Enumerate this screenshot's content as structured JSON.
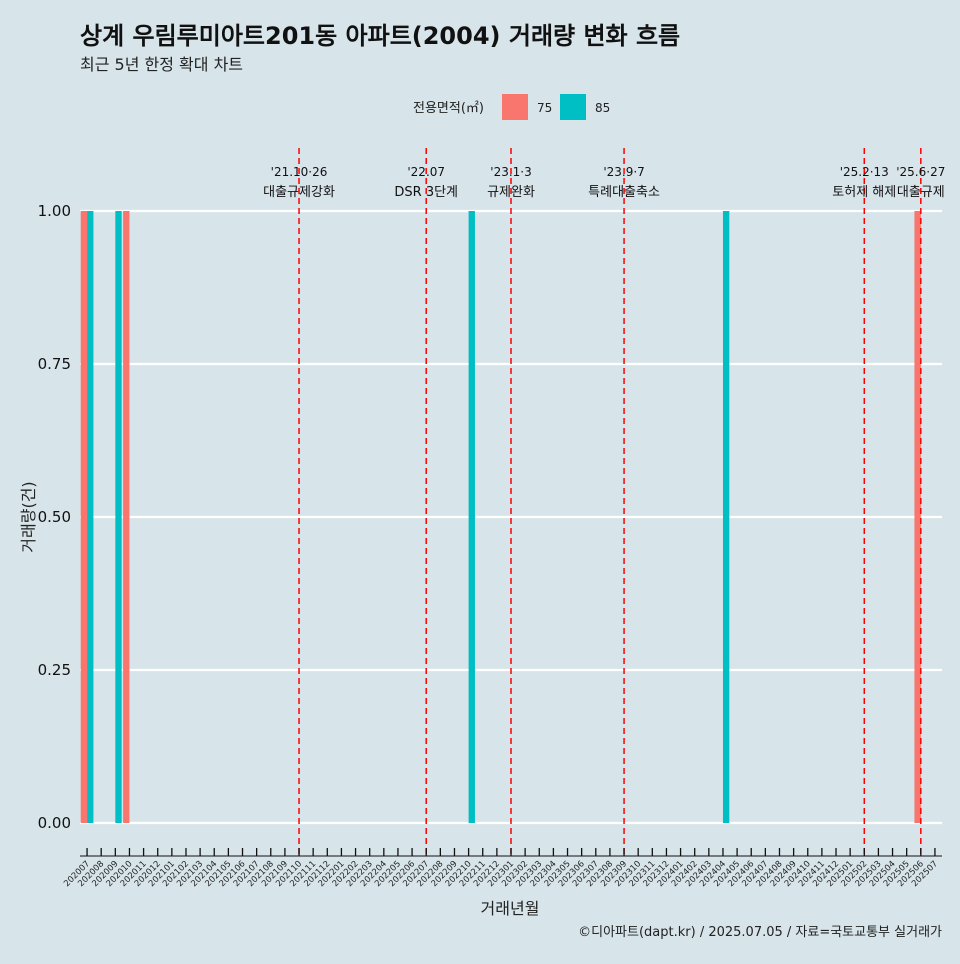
{
  "chart_data": {
    "type": "bar",
    "title": "상계 우림루미아트201동 아파트(2004) 거래량 변화 흐름",
    "subtitle": "최근 5년 한정 확대 차트",
    "xlabel": "거래년월",
    "ylabel": "거래량(건)",
    "ylim": [
      0,
      1
    ],
    "yticks": [
      "0.00",
      "0.25",
      "0.50",
      "0.75",
      "1.00"
    ],
    "grid": true,
    "legend_position": "top",
    "legend_title": "전용면적(㎡)",
    "categories": [
      "202007",
      "202008",
      "202009",
      "202010",
      "202011",
      "202012",
      "202101",
      "202102",
      "202103",
      "202104",
      "202105",
      "202106",
      "202107",
      "202108",
      "202109",
      "202110",
      "202111",
      "202112",
      "202201",
      "202202",
      "202203",
      "202204",
      "202205",
      "202206",
      "202207",
      "202208",
      "202209",
      "202210",
      "202211",
      "202212",
      "202301",
      "202302",
      "202303",
      "202304",
      "202305",
      "202306",
      "202307",
      "202308",
      "202309",
      "202310",
      "202311",
      "202312",
      "202401",
      "202402",
      "202403",
      "202404",
      "202405",
      "202406",
      "202407",
      "202408",
      "202409",
      "202410",
      "202411",
      "202412",
      "202501",
      "202502",
      "202503",
      "202504",
      "202505",
      "202506",
      "202507"
    ],
    "series": [
      {
        "name": "75",
        "color": "#f8766d",
        "points": [
          {
            "x": "202007",
            "y": 1
          },
          {
            "x": "202010",
            "y": 1
          },
          {
            "x": "202506",
            "y": 1
          }
        ]
      },
      {
        "name": "85",
        "color": "#00bfc4",
        "points": [
          {
            "x": "202007",
            "y": 1
          },
          {
            "x": "202009",
            "y": 1
          },
          {
            "x": "202210",
            "y": 1
          },
          {
            "x": "202404",
            "y": 1
          }
        ]
      }
    ],
    "annotations": [
      {
        "x": "202110",
        "line1": "'21.10·26",
        "line2": "대출규제강화"
      },
      {
        "x": "202207",
        "line1": "'22.07",
        "line2": "DSR 3단계"
      },
      {
        "x": "202301",
        "line1": "'23.1·3",
        "line2": "규제완화"
      },
      {
        "x": "202309",
        "line1": "'23.9·7",
        "line2": "특례대출축소"
      },
      {
        "x": "202502",
        "line1": "'25.2·13",
        "line2": "토허제 해제"
      },
      {
        "x": "202506",
        "line1": "'25.6·27",
        "line2": "대출규제"
      }
    ]
  },
  "caption": "©디아파트(dapt.kr) / 2025.07.05 / 자료=국토교통부 실거래가"
}
